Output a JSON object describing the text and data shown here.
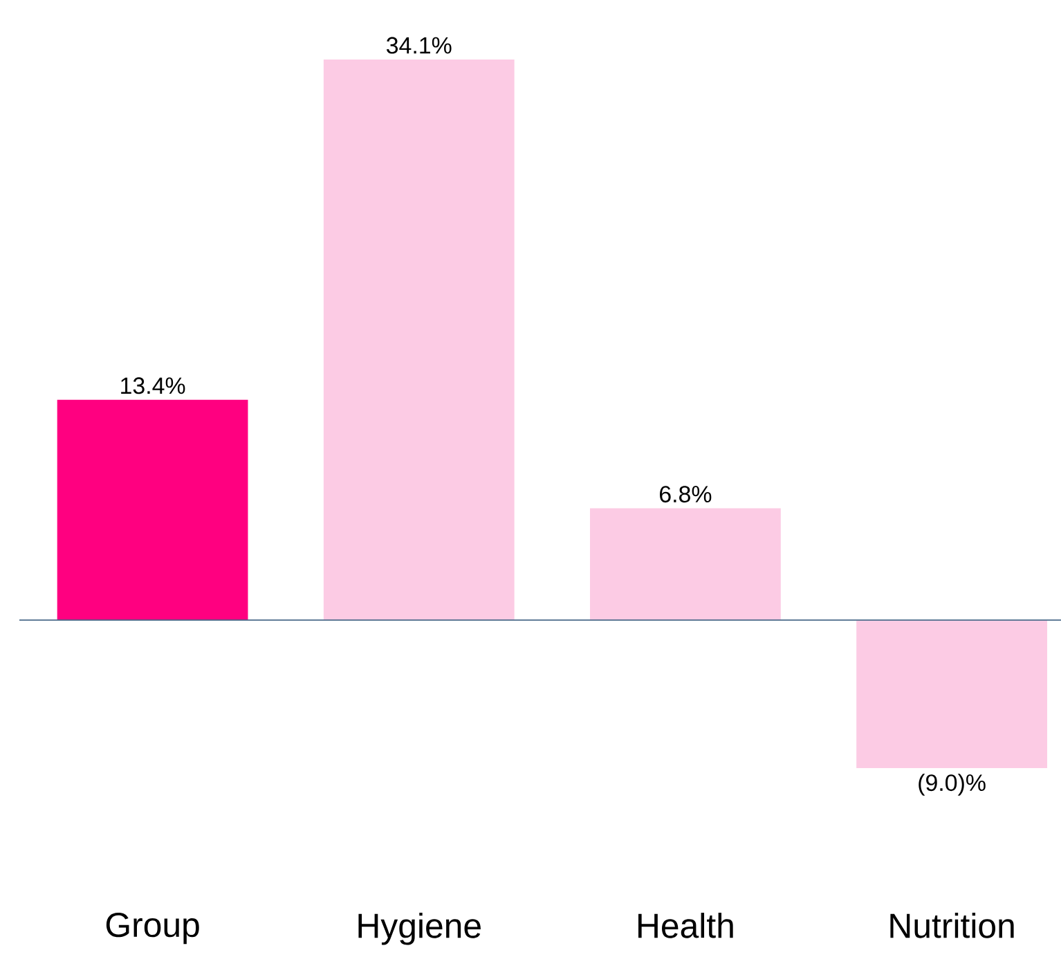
{
  "chart_data": {
    "type": "bar",
    "categories": [
      "Group",
      "Hygiene",
      "Health",
      "Nutrition"
    ],
    "values": [
      13.4,
      34.1,
      6.8,
      -9.0
    ],
    "colors": [
      "#ff0080",
      "#fccbe4",
      "#fccbe4",
      "#fccbe4"
    ],
    "value_labels": [
      "13.4%",
      "34.1%",
      "6.8%",
      "(9.0)%"
    ],
    "ref_lines": [
      {
        "axis": "y",
        "value": 0,
        "color": "#4a6a8a"
      }
    ]
  }
}
